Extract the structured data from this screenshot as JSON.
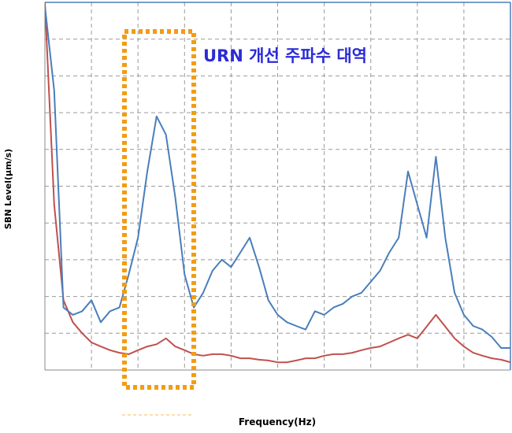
{
  "chart_data": {
    "type": "line",
    "y_label": "SBN Level(μm/s)",
    "x_label": "Frequency(Hz)",
    "annotation": "URN 개선 주파수 대역",
    "xlim": [
      0,
      100
    ],
    "ylim": [
      0,
      100
    ],
    "grid": true,
    "x": [
      0,
      2,
      4,
      6,
      8,
      10,
      12,
      14,
      16,
      18,
      20,
      22,
      24,
      26,
      28,
      30,
      32,
      34,
      36,
      38,
      40,
      42,
      44,
      46,
      48,
      50,
      52,
      54,
      56,
      58,
      60,
      62,
      64,
      66,
      68,
      70,
      72,
      74,
      76,
      78,
      80,
      82,
      84,
      86,
      88,
      90,
      92,
      94,
      96,
      98,
      100
    ],
    "series": [
      {
        "color": "#4a7ebb",
        "values": [
          99,
          76,
          17,
          15,
          16,
          19,
          13,
          16,
          17,
          26,
          36,
          54,
          69,
          64,
          47,
          26,
          17,
          21,
          27,
          30,
          28,
          32,
          36,
          28,
          19,
          15,
          13,
          12,
          11,
          16,
          15,
          17,
          18,
          20,
          21,
          24,
          27,
          32,
          36,
          54,
          45,
          36,
          58,
          36,
          21,
          15,
          12,
          11,
          9,
          6,
          6
        ]
      },
      {
        "color": "#c0504d",
        "values": [
          100,
          45,
          19,
          13,
          10,
          7.5,
          6.4,
          5.4,
          4.7,
          4.3,
          5.4,
          6.4,
          7,
          8.6,
          6.4,
          5.4,
          4.3,
          3.9,
          4.3,
          4.3,
          3.9,
          3.2,
          3.2,
          2.8,
          2.6,
          2.1,
          2.1,
          2.6,
          3.2,
          3.2,
          3.9,
          4.3,
          4.3,
          4.7,
          5.4,
          6,
          6.4,
          7.5,
          8.6,
          9.6,
          8.6,
          11.8,
          15,
          11.8,
          8.6,
          6.4,
          4.7,
          3.9,
          3.2,
          2.8,
          2.1
        ]
      }
    ]
  }
}
